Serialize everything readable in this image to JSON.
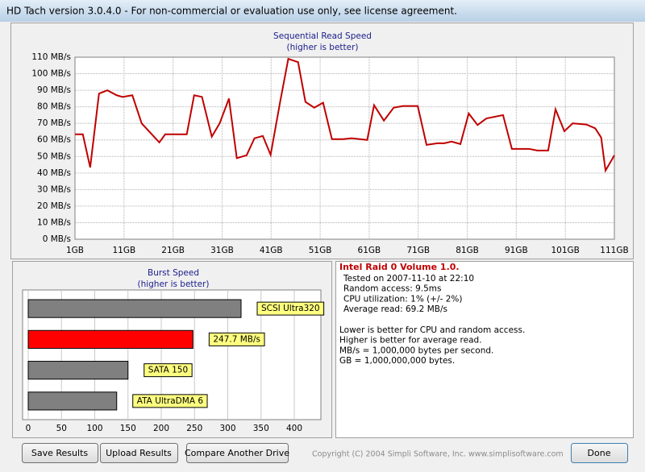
{
  "window": {
    "title": "HD Tach version 3.0.4.0  - For non-commercial or evaluation use only, see license agreement."
  },
  "chart_data": [
    {
      "type": "line",
      "title": "Sequential Read Speed",
      "subtitle": "(higher is better)",
      "x": [
        1,
        2.6,
        4.1,
        5.9,
        7.6,
        9.5,
        10.7,
        12.7,
        14.6,
        18.2,
        19.4,
        23.8,
        25.3,
        26.9,
        28.9,
        30.5,
        32.4,
        34,
        36,
        37.6,
        39.3,
        40.9,
        42.9,
        44.5,
        46.5,
        48,
        49.8,
        51.6,
        53.4,
        55.7,
        57.4,
        60.6,
        62,
        64,
        66,
        67.9,
        70.9,
        72.7,
        74.9,
        76.3,
        77.8,
        79.6,
        81.3,
        83.1,
        84.9,
        88.3,
        90.1,
        93.6,
        95.3,
        97.5,
        99,
        100.8,
        102.5,
        105.3,
        107.1,
        108.3,
        109.2,
        111
      ],
      "values": [
        63.4,
        63.4,
        43.4,
        88,
        90,
        87,
        86,
        87,
        70,
        58.5,
        63.4,
        63.4,
        87,
        86,
        62,
        70,
        85,
        49,
        50.7,
        61,
        62.4,
        51,
        84,
        109,
        107,
        83,
        79.5,
        82.5,
        60.5,
        60.5,
        61,
        60,
        81,
        71.7,
        79.5,
        80.5,
        80.5,
        57,
        58,
        58,
        59,
        57.5,
        76,
        69,
        73,
        75,
        54.6,
        54.6,
        53.6,
        53.6,
        78.5,
        65.3,
        70,
        69.3,
        67,
        61.5,
        41.5,
        50.7
      ],
      "color": "#c00000",
      "xlim": [
        1,
        111
      ],
      "ylim": [
        0,
        110
      ],
      "xticks": [
        {
          "value": 1,
          "label": "1GB"
        },
        {
          "value": 11,
          "label": "11GB"
        },
        {
          "value": 21,
          "label": "21GB"
        },
        {
          "value": 31,
          "label": "31GB"
        },
        {
          "value": 41,
          "label": "41GB"
        },
        {
          "value": 51,
          "label": "51GB"
        },
        {
          "value": 61,
          "label": "61GB"
        },
        {
          "value": 71,
          "label": "71GB"
        },
        {
          "value": 81,
          "label": "81GB"
        },
        {
          "value": 91,
          "label": "91GB"
        },
        {
          "value": 101,
          "label": "101GB"
        },
        {
          "value": 111,
          "label": "111GB"
        }
      ],
      "yticks": [
        {
          "value": 0,
          "label": "0 MB/s"
        },
        {
          "value": 10,
          "label": "10 MB/s"
        },
        {
          "value": 20,
          "label": "20 MB/s"
        },
        {
          "value": 30,
          "label": "30 MB/s"
        },
        {
          "value": 40,
          "label": "40 MB/s"
        },
        {
          "value": 50,
          "label": "50 MB/s"
        },
        {
          "value": 60,
          "label": "60 MB/s"
        },
        {
          "value": 70,
          "label": "70 MB/s"
        },
        {
          "value": 80,
          "label": "80 MB/s"
        },
        {
          "value": 90,
          "label": "90 MB/s"
        },
        {
          "value": 100,
          "label": "100 MB/s"
        },
        {
          "value": 110,
          "label": "110 MB/s"
        }
      ],
      "grid": true
    },
    {
      "type": "bar",
      "orientation": "horizontal",
      "title": "Burst Speed",
      "subtitle": "(higher is better)",
      "categories": [
        "SCSI Ultra320",
        null,
        "SATA 150",
        "ATA UltraDMA 6"
      ],
      "values": [
        320,
        247.7,
        150,
        133
      ],
      "value_labels": [
        null,
        "247.7 MB/s",
        null,
        null
      ],
      "colors": [
        "#808080",
        "#ff0000",
        "#808080",
        "#808080"
      ],
      "xlim": [
        0,
        440
      ],
      "xticks": [
        0,
        50,
        100,
        150,
        200,
        250,
        300,
        350,
        400
      ],
      "grid": true
    }
  ],
  "info": {
    "title": "Intel Raid 0 Volume 1.0.",
    "details": [
      "Tested on 2007-11-10 at 22:10",
      "Random access: 9.5ms",
      "CPU utilization: 1% (+/- 2%)",
      "Average read: 69.2 MB/s"
    ],
    "notes": [
      "Lower is better for CPU and random access.",
      "Higher is better for average read.",
      "MB/s = 1,000,000 bytes per second.",
      "GB = 1,000,000,000 bytes."
    ]
  },
  "buttons": [
    "Save Results",
    "Upload Results",
    "Compare Another Drive",
    "Done"
  ],
  "copyright": "Copyright (C) 2004 Simpli Software, Inc. www.simplisoftware.com"
}
